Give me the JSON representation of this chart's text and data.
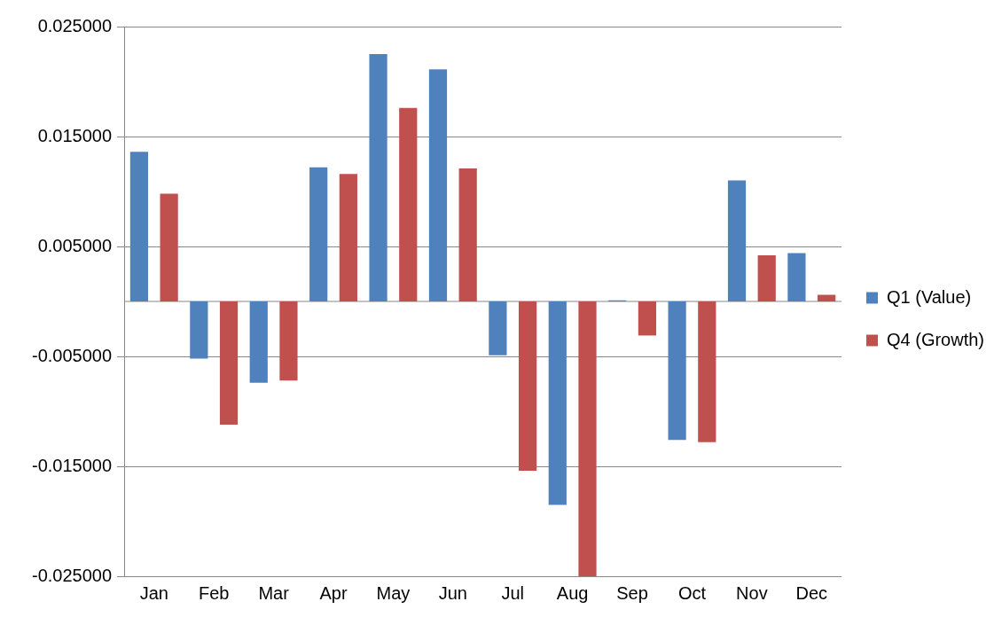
{
  "chart_data": {
    "type": "bar",
    "categories": [
      "Jan",
      "Feb",
      "Mar",
      "Apr",
      "May",
      "Jun",
      "Jul",
      "Aug",
      "Sep",
      "Oct",
      "Nov",
      "Dec"
    ],
    "series": [
      {
        "name": "Q1 (Value)",
        "color": "#4f81bd",
        "values": [
          0.0136,
          -0.0052,
          -0.0074,
          0.0122,
          0.0225,
          0.0211,
          -0.0049,
          -0.0185,
          0.0001,
          -0.0126,
          0.011,
          0.0044
        ]
      },
      {
        "name": "Q4 (Growth)",
        "color": "#c0504d",
        "values": [
          0.0098,
          -0.0112,
          -0.0072,
          0.0116,
          0.0176,
          0.0121,
          -0.0154,
          -0.025,
          -0.0031,
          -0.0128,
          0.0042,
          0.0006
        ]
      }
    ],
    "ylim": [
      -0.025,
      0.025
    ],
    "yticks": [
      {
        "value": -0.025,
        "label": "-0.025000"
      },
      {
        "value": -0.015,
        "label": "-0.015000"
      },
      {
        "value": -0.005,
        "label": "-0.005000"
      },
      {
        "value": 0.005,
        "label": "0.005000"
      },
      {
        "value": 0.015,
        "label": "0.015000"
      },
      {
        "value": 0.025,
        "label": "0.025000"
      }
    ],
    "grid": "y",
    "legend": "right"
  }
}
